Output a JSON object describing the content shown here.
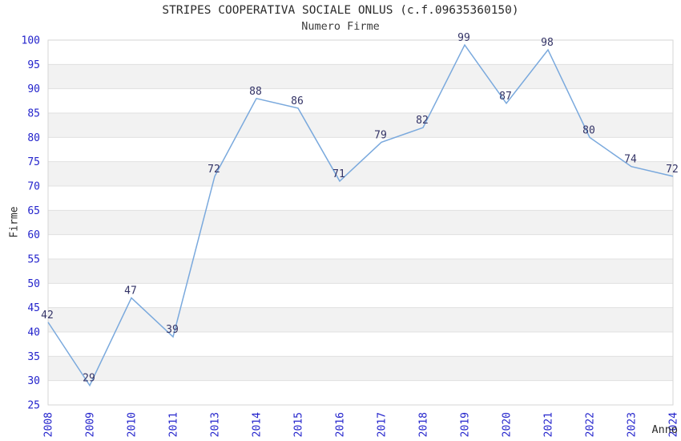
{
  "chart_data": {
    "type": "line",
    "title": "STRIPES COOPERATIVA SOCIALE ONLUS (c.f.09635360150)",
    "subtitle": "Numero Firme",
    "categories": [
      "2008",
      "2009",
      "2010",
      "2011",
      "2013",
      "2014",
      "2015",
      "2016",
      "2017",
      "2018",
      "2019",
      "2020",
      "2021",
      "2022",
      "2023",
      "2024"
    ],
    "values": [
      42,
      29,
      47,
      39,
      72,
      88,
      86,
      71,
      79,
      82,
      99,
      87,
      98,
      80,
      74,
      72
    ],
    "xlabel": "Anno",
    "ylabel": "Firme",
    "ylim": [
      25,
      100
    ],
    "ytick_step": 5,
    "grid": "horizontal-alternating-bands",
    "legend_position": "none",
    "colors": {
      "line": "#7aa9dd",
      "tick_label": "#2424cc",
      "data_label": "#333366",
      "band": "#f2f2f2",
      "gridline": "#e0e0e0",
      "border": "#d6d6d6",
      "title_text": "#2b2b2b"
    }
  }
}
